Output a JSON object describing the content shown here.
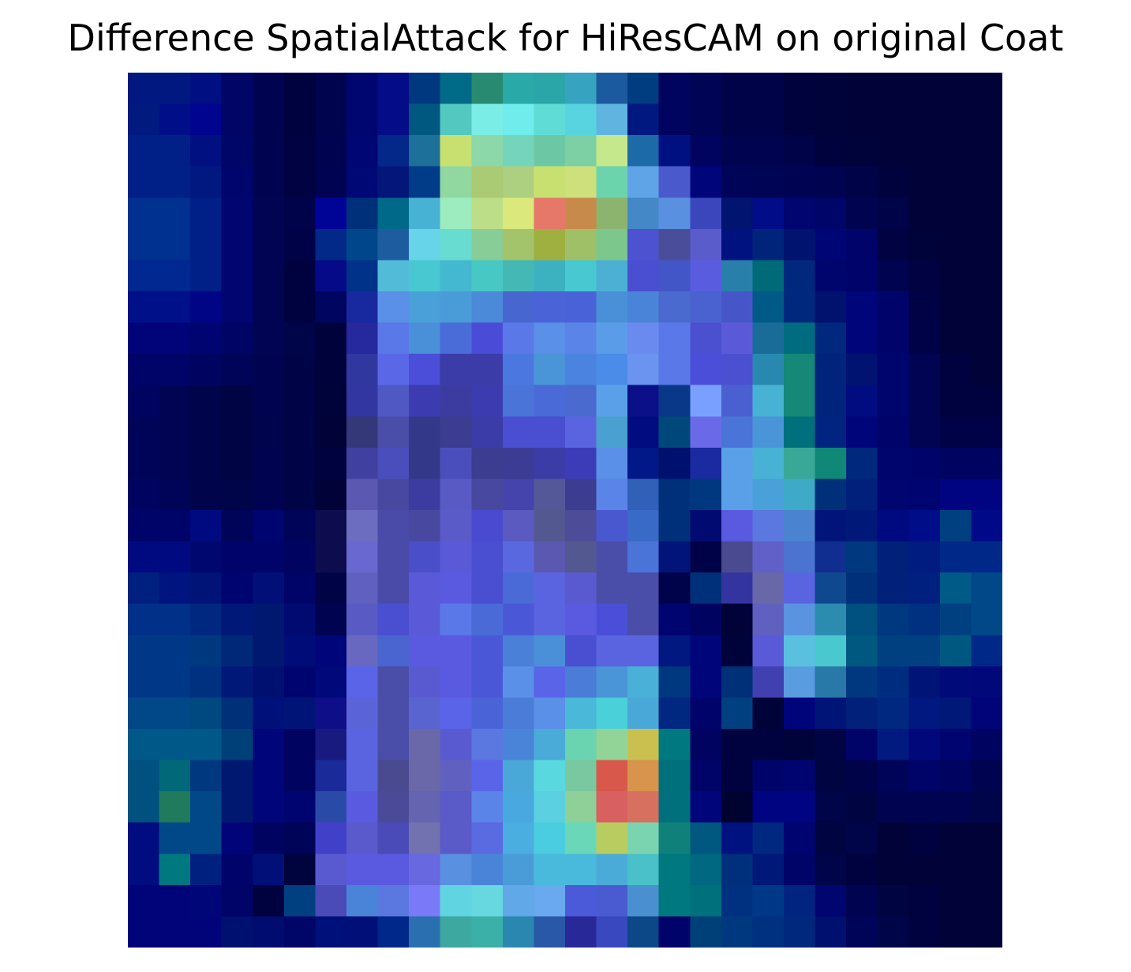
{
  "chart_data": {
    "type": "heatmap",
    "title": "Difference SpatialAttack for HiResCAM on original Coat",
    "colormap": "jet overlay on grayscale image",
    "rows": 28,
    "cols": 28,
    "axes_visible": false,
    "colorbar": false,
    "cell_colors": [
      [
        "#001880",
        "#001880",
        "#000f82",
        "#000566",
        "#000450",
        "#000240",
        "#00034e",
        "#000670",
        "#040c87",
        "#003880",
        "#006b88",
        "#288a70",
        "#2aa9a9",
        "#2aa6a9",
        "#36a3c0",
        "#1c5aa0",
        "#003c80",
        "#00045e",
        "#000454",
        "#000348",
        "#000348",
        "#00023e",
        "#00023a",
        "#000238",
        "#000238",
        "#000238",
        "#000238",
        "#000238"
      ],
      [
        "#001a80",
        "#000f88",
        "#00048e",
        "#000566",
        "#000450",
        "#000240",
        "#00034e",
        "#000670",
        "#040c87",
        "#005880",
        "#52c8c0",
        "#7aeee6",
        "#70ecec",
        "#60dcd6",
        "#58d4e0",
        "#60b4e0",
        "#001880",
        "#00045e",
        "#000454",
        "#000348",
        "#000348",
        "#00023e",
        "#00023a",
        "#000238",
        "#000238",
        "#000238",
        "#000238",
        "#000238"
      ],
      [
        "#002088",
        "#002088",
        "#001080",
        "#000568",
        "#000450",
        "#000242",
        "#000350",
        "#000674",
        "#03288a",
        "#1c7099",
        "#c8e070",
        "#8cd8a8",
        "#74d4bc",
        "#6cc8a4",
        "#7cd0a4",
        "#c6e88c",
        "#1c6aa8",
        "#001080",
        "#00045e",
        "#000450",
        "#000350",
        "#000348",
        "#00023e",
        "#00023a",
        "#000238",
        "#000238",
        "#000238",
        "#000238"
      ],
      [
        "#002088",
        "#002088",
        "#001880",
        "#00056e",
        "#000450",
        "#000242",
        "#000352",
        "#000876",
        "#04167a",
        "#003c88",
        "#90d8a0",
        "#aaca74",
        "#acd080",
        "#c8e070",
        "#cee07c",
        "#6cd4ac",
        "#60a4e8",
        "#4a5acc",
        "#00057a",
        "#000458",
        "#000454",
        "#000352",
        "#000350",
        "#000348",
        "#00023e",
        "#000238",
        "#000238",
        "#000238"
      ],
      [
        "#003090",
        "#003090",
        "#002088",
        "#000570",
        "#000452",
        "#00024a",
        "#000496",
        "#00307a",
        "#006888",
        "#48b2d4",
        "#9cecc0",
        "#bcde88",
        "#dae87c",
        "#e6786a",
        "#c88a4a",
        "#8cb46e",
        "#4488c8",
        "#5a90e0",
        "#3c46bc",
        "#001470",
        "#000c88",
        "#000570",
        "#00056a",
        "#000450",
        "#000348",
        "#000238",
        "#000238",
        "#000238"
      ],
      [
        "#003090",
        "#003090",
        "#002088",
        "#000570",
        "#000452",
        "#000248",
        "#022888",
        "#00468a",
        "#1e5ca0",
        "#68d4ea",
        "#68dcd0",
        "#88cc98",
        "#a4c46c",
        "#a0b040",
        "#a0c068",
        "#7cc88c",
        "#4c52d0",
        "#4a4e9a",
        "#5a5ccc",
        "#001280",
        "#00247a",
        "#00136e",
        "#000576",
        "#00046a",
        "#000242",
        "#00023a",
        "#000238",
        "#000238"
      ],
      [
        "#002890",
        "#002890",
        "#002088",
        "#000570",
        "#000452",
        "#000240",
        "#050b88",
        "#00328a",
        "#52bcd8",
        "#48c8d0",
        "#44b8d0",
        "#48c8c4",
        "#44b8b4",
        "#3cb2c0",
        "#48c8d0",
        "#4cb0d4",
        "#4a4ed0",
        "#4256c8",
        "#5a5ce0",
        "#2880aa",
        "#006a78",
        "#00287c",
        "#00056e",
        "#00046a",
        "#000450",
        "#000242",
        "#000238",
        "#000238"
      ],
      [
        "#001088",
        "#001088",
        "#000585",
        "#000570",
        "#000452",
        "#000240",
        "#000560",
        "#18289e",
        "#5a90e8",
        "#4aa0d8",
        "#4a9cd8",
        "#4a8ad8",
        "#4866d0",
        "#4a64d8",
        "#4a62d8",
        "#4a90d8",
        "#4a84d8",
        "#4a6ad0",
        "#4a62d0",
        "#4656c8",
        "#005a88",
        "#00287c",
        "#00126e",
        "#00057a",
        "#00046a",
        "#000246",
        "#000238",
        "#000238"
      ],
      [
        "#000478",
        "#000478",
        "#000470",
        "#000464",
        "#000452",
        "#000448",
        "#00023c",
        "#26289e",
        "#5a78e8",
        "#4a90d8",
        "#4a6cd8",
        "#4a4cd8",
        "#5a78e8",
        "#5a90e8",
        "#5a84e8",
        "#5a9ce8",
        "#6a8af0",
        "#5a78e8",
        "#4a50d0",
        "#5a5ad8",
        "#1a6c98",
        "#006c80",
        "#00287c",
        "#00057a",
        "#00046a",
        "#000248",
        "#000238",
        "#000238"
      ],
      [
        "#000468",
        "#000468",
        "#000460",
        "#000458",
        "#000450",
        "#000446",
        "#00023c",
        "#3038a0",
        "#5a68e8",
        "#4a4ed8",
        "#3c3ca8",
        "#3c3ca8",
        "#4a78e0",
        "#4a94d8",
        "#4a84e0",
        "#4a8ce8",
        "#6a94f0",
        "#5a78e8",
        "#4a4ed8",
        "#4a50d0",
        "#2888b0",
        "#168878",
        "#00247c",
        "#001370",
        "#00056e",
        "#000452",
        "#000240",
        "#000238"
      ],
      [
        "#000460",
        "#000452",
        "#00044a",
        "#000444",
        "#000450",
        "#000446",
        "#00023a",
        "#3236a0",
        "#5058c4",
        "#3c3cb0",
        "#3c3ca0",
        "#3c3cb0",
        "#4a74d8",
        "#4a6ad8",
        "#4a6ad0",
        "#5aa0e8",
        "#0c1088",
        "#0a3888",
        "#7aa0ff",
        "#4a60d0",
        "#48b2d4",
        "#168878",
        "#00247c",
        "#000c80",
        "#00056e",
        "#000452",
        "#000240",
        "#000240"
      ],
      [
        "#000458",
        "#000452",
        "#00044a",
        "#000444",
        "#00044c",
        "#000446",
        "#000238",
        "#343878",
        "#4a4ea8",
        "#343888",
        "#3c3c90",
        "#3c3ca8",
        "#4a4ed0",
        "#4a4ed0",
        "#5a64e0",
        "#4aa0d0",
        "#000c80",
        "#00487a",
        "#6a6ae8",
        "#4a74d8",
        "#4a94d8",
        "#00707c",
        "#002480",
        "#00057a",
        "#00046a",
        "#000452",
        "#000248",
        "#000248"
      ],
      [
        "#000458",
        "#000452",
        "#00044a",
        "#000444",
        "#000450",
        "#000446",
        "#000240",
        "#4040a0",
        "#4a4ebc",
        "#343888",
        "#4a4ebc",
        "#3c3c90",
        "#3c3c94",
        "#3c3ca8",
        "#3c3cb8",
        "#5a90e8",
        "#001888",
        "#00106e",
        "#1a2aa0",
        "#5aa0e8",
        "#48b2d4",
        "#3aa896",
        "#108878",
        "#00287c",
        "#00056e",
        "#00046a",
        "#000460",
        "#000460"
      ],
      [
        "#000460",
        "#000458",
        "#00044a",
        "#000448",
        "#000450",
        "#000446",
        "#000238",
        "#5a58b0",
        "#4848a0",
        "#3c3ca0",
        "#5a5ac4",
        "#4848a0",
        "#4444ac",
        "#545898",
        "#3c3c90",
        "#5a84e8",
        "#3060b8",
        "#00307a",
        "#003880",
        "#5aa0e8",
        "#4aa0d8",
        "#3eaac8",
        "#00307a",
        "#00207c",
        "#000570",
        "#000470",
        "#000480",
        "#000480"
      ],
      [
        "#000468",
        "#000468",
        "#000a80",
        "#000458",
        "#000470",
        "#000458",
        "#0c0c4e",
        "#6c6cc0",
        "#4a4aa8",
        "#4848a0",
        "#5a5ac8",
        "#4a4ad0",
        "#5a5ac0",
        "#545890",
        "#4c4c98",
        "#4a58d0",
        "#3a6ac8",
        "#00307a",
        "#000a70",
        "#5a5ae0",
        "#5a78e0",
        "#4a84d0",
        "#00147a",
        "#001878",
        "#000a80",
        "#000d88",
        "#004080",
        "#000a88"
      ],
      [
        "#000a80",
        "#000a80",
        "#000870",
        "#00046a",
        "#00046a",
        "#000460",
        "#0c0c4e",
        "#6868d0",
        "#4a4aa8",
        "#4a4ec8",
        "#5a5ad8",
        "#4a4ed0",
        "#5a68e0",
        "#5a58b0",
        "#545890",
        "#4a4ea8",
        "#4a74d8",
        "#00147a",
        "#000248",
        "#4a4a90",
        "#6060c8",
        "#4a74d0",
        "#102e90",
        "#003880",
        "#00207a",
        "#001c80",
        "#002888",
        "#002888"
      ],
      [
        "#002080",
        "#001480",
        "#001478",
        "#000470",
        "#001078",
        "#000468",
        "#000446",
        "#6060c0",
        "#4a4aa8",
        "#5a5ad8",
        "#5a5ae0",
        "#4a4ed0",
        "#4a6ad8",
        "#5a64e0",
        "#5a5ad0",
        "#4a4ea8",
        "#4a4ea8",
        "#00024a",
        "#00307a",
        "#3434a0",
        "#6868a8",
        "#5a64e0",
        "#104890",
        "#00307a",
        "#00207a",
        "#002080",
        "#005a88",
        "#004888"
      ],
      [
        "#003088",
        "#003088",
        "#002880",
        "#001878",
        "#001870",
        "#000a70",
        "#000450",
        "#5a5ac4",
        "#4a4ed0",
        "#5a5ad8",
        "#5a78e8",
        "#4a6ad8",
        "#4a58d8",
        "#5a64e0",
        "#5a5ae0",
        "#4a4ed8",
        "#4a4ea8",
        "#000470",
        "#000460",
        "#000238",
        "#6060c0",
        "#5a94e0",
        "#2c8cb0",
        "#005080",
        "#003880",
        "#003080",
        "#004080",
        "#004888"
      ],
      [
        "#003888",
        "#003888",
        "#003880",
        "#002878",
        "#001870",
        "#000c78",
        "#00057a",
        "#6868c0",
        "#4a64d0",
        "#5a5ae0",
        "#5a5ae0",
        "#4a58d8",
        "#4a80d8",
        "#4a90d8",
        "#4a4ed0",
        "#5a64e0",
        "#5a64e0",
        "#001880",
        "#00057a",
        "#00023a",
        "#5a5ad8",
        "#5ac0e0",
        "#4ac8d0",
        "#005880",
        "#004080",
        "#004080",
        "#005880",
        "#002888"
      ],
      [
        "#003888",
        "#003888",
        "#003080",
        "#001878",
        "#001070",
        "#000470",
        "#00087a",
        "#5a64e8",
        "#4a4ea8",
        "#5a5ad0",
        "#5a5ae0",
        "#4a58d8",
        "#5a90e8",
        "#5a64e8",
        "#4a7cd8",
        "#4a94d8",
        "#4ab0d8",
        "#003880",
        "#00067a",
        "#003078",
        "#4040b0",
        "#5a9ce0",
        "#2878a8",
        "#003880",
        "#002c80",
        "#001478",
        "#000a78",
        "#00087a"
      ],
      [
        "#004888",
        "#004888",
        "#004880",
        "#003078",
        "#00107a",
        "#001478",
        "#0e0e88",
        "#5a64d8",
        "#4a4ea8",
        "#5a64d0",
        "#5a64e8",
        "#4a64d8",
        "#4a7cd8",
        "#5a90e8",
        "#4ab8d8",
        "#4ad0d8",
        "#4aa8d8",
        "#002880",
        "#00046a",
        "#004080",
        "#000338",
        "#00047a",
        "#001478",
        "#00207a",
        "#002880",
        "#001880",
        "#001878",
        "#000478"
      ],
      [
        "#005888",
        "#005888",
        "#005888",
        "#004078",
        "#00057a",
        "#000460",
        "#181a80",
        "#5a64e0",
        "#4a4ea8",
        "#6a68a8",
        "#5a5ad0",
        "#5a78e0",
        "#4a84d8",
        "#4aaad8",
        "#6ad4b0",
        "#92d498",
        "#cac050",
        "#007880",
        "#000460",
        "#000240",
        "#000240",
        "#00023a",
        "#000444",
        "#000468",
        "#001a80",
        "#00087a",
        "#000470",
        "#000460"
      ],
      [
        "#005080",
        "#006878",
        "#003880",
        "#001870",
        "#00057a",
        "#000460",
        "#1a2a98",
        "#5a64e0",
        "#4a4a90",
        "#6a68a8",
        "#6060c0",
        "#5a64e8",
        "#4aa8d8",
        "#5ad8e0",
        "#7ac8a0",
        "#d8584c",
        "#d8944c",
        "#00707c",
        "#000468",
        "#000240",
        "#00046a",
        "#000470",
        "#000440",
        "#000348",
        "#000458",
        "#000468",
        "#000460",
        "#000450"
      ],
      [
        "#005080",
        "#207a5c",
        "#004888",
        "#001870",
        "#00057a",
        "#000470",
        "#2a4aa8",
        "#5a5ae0",
        "#4a4a98",
        "#6464b0",
        "#5a5ac8",
        "#5a84e8",
        "#4aa8e0",
        "#5ad0e0",
        "#8ed098",
        "#d86060",
        "#d87060",
        "#00707c",
        "#00057a",
        "#000230",
        "#000480",
        "#000480",
        "#000448",
        "#000440",
        "#000450",
        "#000450",
        "#000450",
        "#000448"
      ],
      [
        "#000c80",
        "#004888",
        "#004888",
        "#000478",
        "#000460",
        "#000458",
        "#4040c8",
        "#5a5acc",
        "#4a4ab8",
        "#7272b0",
        "#5a5ac8",
        "#5a6ae0",
        "#4aaee0",
        "#4acde0",
        "#6ad8b8",
        "#b8cc60",
        "#7ad4b0",
        "#10807a",
        "#005880",
        "#001280",
        "#002880",
        "#000470",
        "#000440",
        "#000448",
        "#000238",
        "#000240",
        "#000238",
        "#000238"
      ],
      [
        "#000c80",
        "#007880",
        "#002080",
        "#00046a",
        "#001078",
        "#00043e",
        "#5a5ad0",
        "#5a5ae0",
        "#5a5ae0",
        "#6868e0",
        "#5a90e0",
        "#4a84d8",
        "#4a9cd8",
        "#4abadc",
        "#4abadc",
        "#4aaad8",
        "#4ac0c8",
        "#007880",
        "#006880",
        "#00307c",
        "#001878",
        "#000468",
        "#000448",
        "#000240",
        "#000238",
        "#000238",
        "#000238",
        "#000238"
      ],
      [
        "#000478",
        "#000478",
        "#000678",
        "#000468",
        "#000240",
        "#004080",
        "#4a4ab8",
        "#4a84d8",
        "#5a78e0",
        "#7a7af8",
        "#60d4e0",
        "#68d8e0",
        "#60a8e8",
        "#6aa8f0",
        "#4a5ad8",
        "#4a5ad0",
        "#4a90d0",
        "#007880",
        "#00707c",
        "#003080",
        "#003888",
        "#002480",
        "#000570",
        "#000450",
        "#000440",
        "#000240",
        "#000238",
        "#000238"
      ],
      [
        "#000478",
        "#000478",
        "#000478",
        "#001070",
        "#000c70",
        "#000568",
        "#00107a",
        "#001078",
        "#00288a",
        "#2a70b0",
        "#3ca8a0",
        "#3ab0a8",
        "#2a88b0",
        "#2a58a8",
        "#282898",
        "#3a48c0",
        "#0c4888",
        "#00046a",
        "#004078",
        "#003880",
        "#003080",
        "#00287c",
        "#00106e",
        "#000458",
        "#000448",
        "#000240",
        "#000238",
        "#000238"
      ]
    ]
  }
}
